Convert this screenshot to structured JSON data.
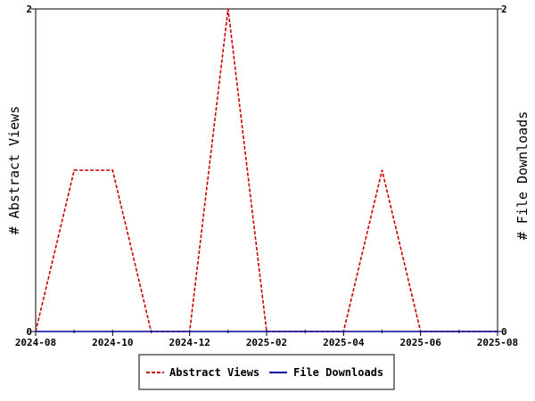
{
  "chart_data": {
    "type": "line",
    "ylabel_left": "# Abstract Views",
    "ylabel_right": "# File Downloads",
    "ylim_left": [
      0,
      2
    ],
    "ylim_right": [
      0,
      2
    ],
    "y_ticks_left": [
      "0",
      "2"
    ],
    "y_ticks_right": [
      "0",
      "2"
    ],
    "x_ticks": [
      "2024-08",
      "2024-10",
      "2024-12",
      "2025-02",
      "2025-04",
      "2025-06",
      "2025-08"
    ],
    "x": [
      "2024-08",
      "2024-09",
      "2024-10",
      "2024-11",
      "2024-12",
      "2025-01",
      "2025-02",
      "2025-03",
      "2025-04",
      "2025-05",
      "2025-06",
      "2025-07",
      "2025-08"
    ],
    "series": [
      {
        "name": "Abstract Views",
        "axis": "left",
        "color": "#cc0000",
        "style": "dashed",
        "values": [
          0,
          1,
          1,
          0,
          0,
          2,
          0,
          0,
          0,
          1,
          0,
          0,
          0
        ]
      },
      {
        "name": "File Downloads",
        "axis": "right",
        "color": "#000099",
        "style": "solid",
        "values": [
          0,
          0,
          0,
          0,
          0,
          0,
          0,
          0,
          0,
          0,
          0,
          0,
          0
        ]
      }
    ],
    "grid": false,
    "legend_position": "bottom"
  }
}
